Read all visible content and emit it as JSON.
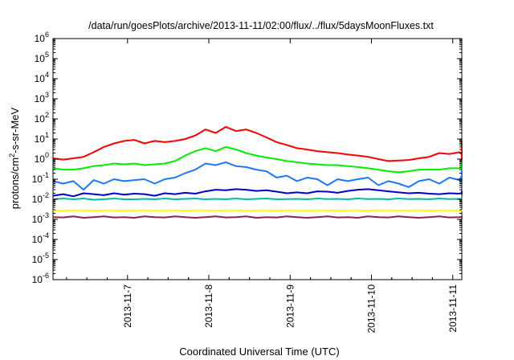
{
  "chart_data": {
    "type": "line",
    "title": "/data/run/goesPlots/archive/2013-11-11/02:00/flux/../flux/5daysMoonFluxes.txt",
    "xlabel": "Coordinated Universal Time (UTC)",
    "ylabel_parts": [
      "protons/cm",
      "2",
      "-s-sr-MeV"
    ],
    "ylabel": "protons/cm2-s-sr-MeV",
    "yscale": "log",
    "ylim": [
      1e-06,
      1000000.0
    ],
    "y_ticks": [
      {
        "value": -6,
        "base": "10",
        "exp": "-6"
      },
      {
        "value": -5,
        "base": "10",
        "exp": "-5"
      },
      {
        "value": -4,
        "base": "10",
        "exp": "-4"
      },
      {
        "value": -3,
        "base": "10",
        "exp": "-3"
      },
      {
        "value": -2,
        "base": "10",
        "exp": "-2"
      },
      {
        "value": -1,
        "base": "10",
        "exp": "-1"
      },
      {
        "value": 0,
        "base": "10",
        "exp": "0"
      },
      {
        "value": 1,
        "base": "10",
        "exp": "1"
      },
      {
        "value": 2,
        "base": "10",
        "exp": "2"
      },
      {
        "value": 3,
        "base": "10",
        "exp": "3"
      },
      {
        "value": 4,
        "base": "10",
        "exp": "4"
      },
      {
        "value": 5,
        "base": "10",
        "exp": "5"
      },
      {
        "value": 6,
        "base": "10",
        "exp": "6"
      }
    ],
    "xlim": [
      "2013-11-06 02:00",
      "2013-11-11 02:40"
    ],
    "x_ticks": [
      {
        "value": "2013-11-07",
        "label": "2013-11-7"
      },
      {
        "value": "2013-11-08",
        "label": "2013-11-8"
      },
      {
        "value": "2013-11-09",
        "label": "2013-11-9"
      },
      {
        "value": "2013-11-10",
        "label": "2013-11-10"
      },
      {
        "value": "2013-11-11",
        "label": "2013-11-11"
      }
    ],
    "grid": false,
    "sample_interval_hours": 3,
    "series": [
      {
        "color": "#ff0000",
        "values": [
          1.1,
          0.95,
          1.1,
          1.3,
          2.2,
          4,
          6,
          8,
          9,
          6,
          8,
          7,
          8,
          10,
          15,
          30,
          20,
          40,
          25,
          30,
          20,
          12,
          7,
          5,
          3.5,
          3,
          2.5,
          2.2,
          2,
          1.7,
          1.5,
          1.3,
          1,
          0.8,
          0.85,
          0.9,
          1.1,
          1.3,
          2,
          1.8,
          2.2,
          1.7,
          2.5,
          2,
          3,
          2.5,
          3.5,
          5,
          8,
          4,
          3,
          2.5,
          2,
          1.6,
          1.4,
          1.2,
          1.5,
          1.3,
          1.1,
          1,
          1.2,
          0.9,
          1.3,
          2,
          1.8,
          2.5,
          3,
          2.5,
          2.8,
          3,
          3.2,
          3.5
        ]
      },
      {
        "color": "#00ee00",
        "values": [
          0.35,
          0.3,
          0.3,
          0.35,
          0.45,
          0.5,
          0.6,
          0.55,
          0.6,
          0.5,
          0.55,
          0.6,
          0.8,
          1.5,
          2.5,
          3.5,
          2.5,
          4,
          3,
          2,
          1.5,
          1.2,
          1,
          0.8,
          0.7,
          0.6,
          0.55,
          0.5,
          0.5,
          0.45,
          0.4,
          0.35,
          0.3,
          0.25,
          0.22,
          0.25,
          0.3,
          0.3,
          0.3,
          0.35,
          0.35,
          0.4,
          0.35,
          0.4,
          0.45,
          0.4,
          0.45,
          0.5,
          0.45,
          0.4,
          0.45,
          0.4,
          0.35,
          0.4,
          0.35,
          0.4,
          0.3,
          0.3,
          0.3,
          0.35,
          0.3,
          0.4,
          0.45,
          0.5,
          0.5,
          0.55,
          0.5,
          0.55,
          0.5,
          0.5,
          0.45,
          0.5
        ]
      },
      {
        "color": "#1e78ff",
        "values": [
          0.08,
          0.06,
          0.08,
          0.03,
          0.09,
          0.06,
          0.1,
          0.08,
          0.09,
          0.1,
          0.06,
          0.1,
          0.12,
          0.2,
          0.3,
          0.6,
          0.5,
          0.7,
          0.45,
          0.4,
          0.3,
          0.25,
          0.12,
          0.15,
          0.08,
          0.12,
          0.1,
          0.05,
          0.1,
          0.08,
          0.1,
          0.12,
          0.05,
          0.08,
          0.06,
          0.04,
          0.08,
          0.1,
          0.06,
          0.12,
          0.09,
          0.15,
          0.06,
          0.1,
          0.13,
          0.08,
          0.15,
          0.1,
          0.2,
          0.12,
          0.07,
          0.15,
          0.1,
          0.12,
          0.09,
          0.15,
          0.06,
          0.1,
          0.2,
          0.1,
          0.08,
          0.15,
          0.12,
          0.2,
          0.1,
          0.15,
          0.25,
          0.1,
          0.13,
          0.2,
          0.12,
          0.18
        ]
      },
      {
        "color": "#0000cc",
        "values": [
          0.015,
          0.018,
          0.014,
          0.02,
          0.018,
          0.016,
          0.02,
          0.017,
          0.019,
          0.018,
          0.015,
          0.02,
          0.018,
          0.021,
          0.019,
          0.025,
          0.03,
          0.028,
          0.032,
          0.03,
          0.026,
          0.028,
          0.024,
          0.02,
          0.022,
          0.02,
          0.025,
          0.024,
          0.021,
          0.026,
          0.03,
          0.032,
          0.028,
          0.025,
          0.022,
          0.02,
          0.021,
          0.019,
          0.018,
          0.02,
          0.019,
          0.021,
          0.02,
          0.022,
          0.019,
          0.021,
          0.02,
          0.022,
          0.021,
          0.019,
          0.02,
          0.022,
          0.018,
          0.02,
          0.021,
          0.019,
          0.022,
          0.02,
          0.023,
          0.019,
          0.021,
          0.024,
          0.02,
          0.022,
          0.025,
          0.021,
          0.02,
          0.023,
          0.022,
          0.021,
          0.023,
          0.02
        ]
      },
      {
        "color": "#00bbaa",
        "values": [
          0.01,
          0.011,
          0.01,
          0.011,
          0.0095,
          0.01,
          0.011,
          0.01,
          0.01,
          0.0105,
          0.01,
          0.011,
          0.01,
          0.0105,
          0.011,
          0.01,
          0.0105,
          0.01,
          0.011,
          0.01,
          0.0105,
          0.011,
          0.01,
          0.0102,
          0.0105,
          0.01,
          0.011,
          0.0102,
          0.0105,
          0.01,
          0.011,
          0.0102,
          0.0105,
          0.01,
          0.011,
          0.0102,
          0.0105,
          0.01,
          0.011,
          0.0102,
          0.0105,
          0.01,
          0.011,
          0.0102,
          0.0105,
          0.01,
          0.011,
          0.0102,
          0.0105,
          0.01,
          0.011,
          0.0102,
          0.0105,
          0.01,
          0.011,
          0.0102,
          0.0105,
          0.01,
          0.011,
          0.0102,
          0.0105,
          0.01,
          0.011,
          0.0102,
          0.0105,
          0.01,
          0.011,
          0.0102,
          0.0105,
          0.01,
          0.011,
          0.0102
        ]
      },
      {
        "color": "#ffff00",
        "values": [
          0.0028,
          0.0027,
          0.0028,
          0.0028,
          0.0027,
          0.0028,
          0.0028,
          0.0027,
          0.0028,
          0.0028,
          0.0027,
          0.0028,
          0.0028,
          0.0027,
          0.0028,
          0.0028,
          0.0027,
          0.0028,
          0.0028,
          0.0027,
          0.0028,
          0.0028,
          0.0027,
          0.0028,
          0.0028,
          0.0027,
          0.0028,
          0.0028,
          0.0027,
          0.0028,
          0.0028,
          0.0027,
          0.0028,
          0.0028,
          0.0027,
          0.0028,
          0.0028,
          0.0027,
          0.0028,
          0.0028,
          0.0027,
          0.0028,
          0.0028,
          0.0027,
          0.0028,
          0.0028,
          0.0027,
          0.0028,
          0.0028,
          0.0027,
          0.0028,
          0.0028,
          0.0027,
          0.0028,
          0.0028,
          0.0027,
          0.0028,
          0.0028,
          0.0027,
          0.0028,
          0.0028,
          0.0027,
          0.0028,
          0.0028,
          0.0027,
          0.0028,
          0.0028,
          0.0027,
          0.0028,
          0.0028,
          0.0027,
          0.0028
        ]
      },
      {
        "color": "#8b2252",
        "values": [
          0.0013,
          0.00125,
          0.0014,
          0.0012,
          0.0013,
          0.0014,
          0.00125,
          0.0013,
          0.0012,
          0.0014,
          0.0013,
          0.00125,
          0.0014,
          0.0013,
          0.0012,
          0.0013,
          0.0014,
          0.00125,
          0.0013,
          0.0014,
          0.0012,
          0.0013,
          0.00125,
          0.0014,
          0.0013,
          0.0012,
          0.0013,
          0.0014,
          0.00125,
          0.0013,
          0.0012,
          0.0014,
          0.0013,
          0.00125,
          0.0014,
          0.0013,
          0.0012,
          0.0013,
          0.0014,
          0.00125,
          0.0013,
          0.0014,
          0.0012,
          0.0013,
          0.00125,
          0.0014,
          0.0013,
          0.0012,
          0.0013,
          0.0014,
          0.00125,
          0.0013,
          0.0012,
          0.0014,
          0.0013,
          0.00125,
          0.0014,
          0.0013,
          0.0012,
          0.0013,
          0.0014,
          0.00125,
          0.0013,
          0.0014,
          0.0012,
          0.0013,
          0.00125,
          0.0014,
          0.0013,
          0.0012,
          0.0013,
          0.0011
        ]
      }
    ]
  }
}
